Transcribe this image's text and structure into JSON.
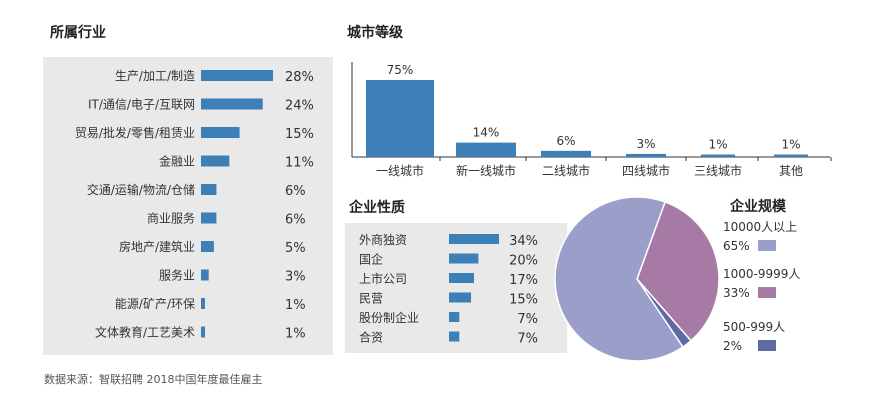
{
  "industry": {
    "title": "所属行业",
    "chart_data": {
      "type": "bar",
      "categories": [
        "生产/加工/制造",
        "IT/通信/电子/互联网",
        "贸易/批发/零售/租赁业",
        "金融业",
        "交通/运输/物流/仓储",
        "商业服务",
        "房地产/建筑业",
        "服务业",
        "能源/矿产/环保",
        "文体教育/工艺美术"
      ],
      "values": [
        28,
        24,
        15,
        11,
        6,
        6,
        5,
        3,
        1,
        1
      ],
      "labels": [
        "28%",
        "24%",
        "15%",
        "11%",
        "6%",
        "6%",
        "5%",
        "3%",
        "1%",
        "1%"
      ],
      "color": "#3d80b8"
    }
  },
  "city": {
    "title": "城市等级",
    "chart_data": {
      "type": "bar",
      "categories": [
        "一线城市",
        "新一线城市",
        "二线城市",
        "四线城市",
        "三线城市",
        "其他"
      ],
      "values": [
        75,
        14,
        6,
        3,
        1,
        1
      ],
      "labels": [
        "75%",
        "14%",
        "6%",
        "3%",
        "1%",
        "1%"
      ],
      "color": "#3d80b8"
    }
  },
  "nature": {
    "title": "企业性质",
    "chart_data": {
      "type": "bar",
      "categories": [
        "外商独资",
        "国企",
        "上市公司",
        "民营",
        "股份制企业",
        "合资"
      ],
      "values": [
        34,
        20,
        17,
        15,
        7,
        7
      ],
      "labels": [
        "34%",
        "20%",
        "17%",
        "15%",
        "7%",
        "7%"
      ],
      "color": "#3d80b8"
    }
  },
  "scale": {
    "title": "企业规模",
    "chart_data": {
      "type": "pie",
      "categories": [
        "10000人以上",
        "1000-9999人",
        "500-999人"
      ],
      "values": [
        65,
        33,
        2
      ],
      "labels": [
        "65%",
        "33%",
        "2%"
      ],
      "colors": [
        "#9a9ec9",
        "#a77aa5",
        "#5e6aa3"
      ]
    }
  },
  "source": "数据来源：智联招聘 2018中国年度最佳雇主"
}
